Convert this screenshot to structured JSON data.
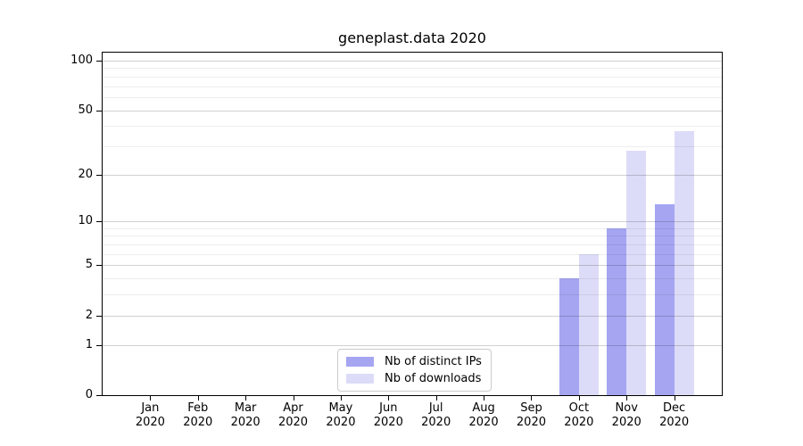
{
  "chart_data": {
    "type": "bar",
    "title": "geneplast.data 2020",
    "months": [
      "Jan",
      "Feb",
      "Mar",
      "Apr",
      "May",
      "Jun",
      "Jul",
      "Aug",
      "Sep",
      "Oct",
      "Nov",
      "Dec"
    ],
    "year_label": "2020",
    "series": [
      {
        "name": "Nb of distinct IPs",
        "color": "#a5a5f2",
        "values": [
          0,
          0,
          0,
          0,
          0,
          0,
          0,
          0,
          0,
          4,
          9,
          13
        ]
      },
      {
        "name": "Nb of downloads",
        "color": "#dcdcf8",
        "values": [
          0,
          0,
          0,
          0,
          0,
          0,
          0,
          0,
          0,
          6,
          28,
          37
        ]
      }
    ],
    "y_scale": "log1p",
    "y_axis_ticks": [
      0,
      1,
      2,
      5,
      10,
      20,
      50,
      100
    ],
    "y_minor_gridlines": [
      3,
      4,
      6,
      7,
      8,
      9,
      30,
      40,
      60,
      70,
      80,
      90
    ],
    "ylim": [
      0,
      113
    ],
    "xlabel": "",
    "ylabel": "",
    "grid": true,
    "legend_position": "lower center",
    "colors": {
      "background": "#ffffff",
      "axis": "#000000",
      "major_grid": "#d2d2d2",
      "minor_grid": "#ededed"
    }
  }
}
